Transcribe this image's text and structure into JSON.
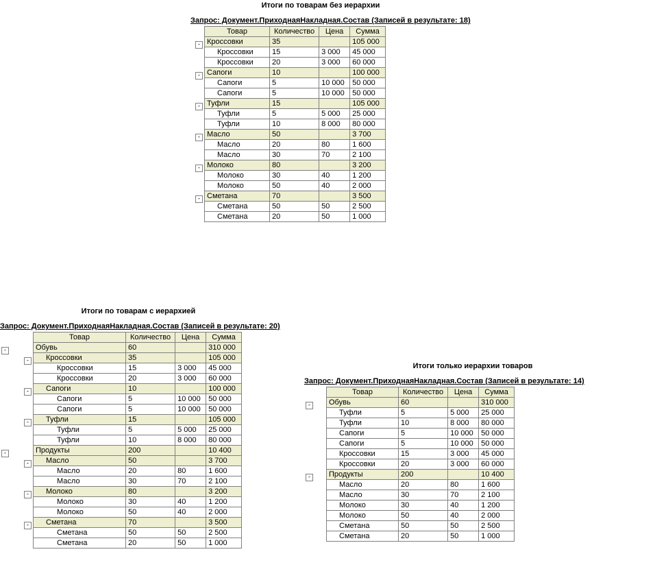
{
  "colors": {
    "group_bg": "#eeeed1",
    "detail_bg": "#ffffff",
    "border": "#808080",
    "text": "#000000"
  },
  "columns": [
    "Товар",
    "Количество",
    "Цена",
    "Сумма"
  ],
  "col_widths": {
    "tovar": 95,
    "qty": 70,
    "price": 45,
    "sum": 52
  },
  "panel1": {
    "title": "Итоги по товарам без иерархии",
    "query": "Запрос: Документ.ПриходнаяНакладная.Состав (Записей в результате: 18)",
    "tree_width": 20,
    "rows": [
      {
        "level": 0,
        "type": "group",
        "box": true,
        "cells": [
          "Кроссовки",
          "35",
          "",
          "105 000"
        ]
      },
      {
        "level": 0,
        "type": "detail",
        "cells": [
          "Кроссовки",
          "15",
          "3 000",
          "45 000"
        ],
        "ind": 1
      },
      {
        "level": 0,
        "type": "detail",
        "cells": [
          "Кроссовки",
          "20",
          "3 000",
          "60 000"
        ],
        "ind": 1
      },
      {
        "level": 0,
        "type": "group",
        "box": true,
        "cells": [
          "Сапоги",
          "10",
          "",
          "100 000"
        ]
      },
      {
        "level": 0,
        "type": "detail",
        "cells": [
          "Сапоги",
          "5",
          "10 000",
          "50 000"
        ],
        "ind": 1
      },
      {
        "level": 0,
        "type": "detail",
        "cells": [
          "Сапоги",
          "5",
          "10 000",
          "50 000"
        ],
        "ind": 1
      },
      {
        "level": 0,
        "type": "group",
        "box": true,
        "cells": [
          "Туфли",
          "15",
          "",
          "105 000"
        ]
      },
      {
        "level": 0,
        "type": "detail",
        "cells": [
          "Туфли",
          "5",
          "5 000",
          "25 000"
        ],
        "ind": 1
      },
      {
        "level": 0,
        "type": "detail",
        "cells": [
          "Туфли",
          "10",
          "8 000",
          "80 000"
        ],
        "ind": 1
      },
      {
        "level": 0,
        "type": "group",
        "box": true,
        "cells": [
          "Масло",
          "50",
          "",
          "3 700"
        ]
      },
      {
        "level": 0,
        "type": "detail",
        "cells": [
          "Масло",
          "20",
          "80",
          "1 600"
        ],
        "ind": 1
      },
      {
        "level": 0,
        "type": "detail",
        "cells": [
          "Масло",
          "30",
          "70",
          "2 100"
        ],
        "ind": 1
      },
      {
        "level": 0,
        "type": "group",
        "box": true,
        "cells": [
          "Молоко",
          "80",
          "",
          "3 200"
        ]
      },
      {
        "level": 0,
        "type": "detail",
        "cells": [
          "Молоко",
          "30",
          "40",
          "1 200"
        ],
        "ind": 1
      },
      {
        "level": 0,
        "type": "detail",
        "cells": [
          "Молоко",
          "50",
          "40",
          "2 000"
        ],
        "ind": 1
      },
      {
        "level": 0,
        "type": "group",
        "box": true,
        "cells": [
          "Сметана",
          "70",
          "",
          "3 500"
        ]
      },
      {
        "level": 0,
        "type": "detail",
        "cells": [
          "Сметана",
          "50",
          "50",
          "2 500"
        ],
        "ind": 1
      },
      {
        "level": 0,
        "type": "detail",
        "cells": [
          "Сметана",
          "20",
          "50",
          "1 000"
        ],
        "ind": 1
      }
    ]
  },
  "panel2": {
    "title": "Итоги по товарам с иерархией",
    "query": "Запрос: Документ.ПриходнаяНакладная.Состав (Записей в результате: 20)",
    "tree_width": 48,
    "col_widths": {
      "tovar": 135,
      "qty": 70,
      "price": 45,
      "sum": 52
    },
    "rows": [
      {
        "level": 0,
        "type": "group",
        "box": true,
        "cells": [
          "Обувь",
          "60",
          "",
          "310 000"
        ]
      },
      {
        "level": 1,
        "type": "group",
        "box": true,
        "cells": [
          "Кроссовки",
          "35",
          "",
          "105 000"
        ],
        "ind": 1
      },
      {
        "level": 1,
        "type": "detail",
        "cells": [
          "Кроссовки",
          "15",
          "3 000",
          "45 000"
        ],
        "ind": 2
      },
      {
        "level": 1,
        "type": "detail",
        "cells": [
          "Кроссовки",
          "20",
          "3 000",
          "60 000"
        ],
        "ind": 2
      },
      {
        "level": 1,
        "type": "group",
        "box": true,
        "cells": [
          "Сапоги",
          "10",
          "",
          "100 000"
        ],
        "ind": 1
      },
      {
        "level": 1,
        "type": "detail",
        "cells": [
          "Сапоги",
          "5",
          "10 000",
          "50 000"
        ],
        "ind": 2
      },
      {
        "level": 1,
        "type": "detail",
        "cells": [
          "Сапоги",
          "5",
          "10 000",
          "50 000"
        ],
        "ind": 2
      },
      {
        "level": 1,
        "type": "group",
        "box": true,
        "cells": [
          "Туфли",
          "15",
          "",
          "105 000"
        ],
        "ind": 1
      },
      {
        "level": 1,
        "type": "detail",
        "cells": [
          "Туфли",
          "5",
          "5 000",
          "25 000"
        ],
        "ind": 2
      },
      {
        "level": 1,
        "type": "detail",
        "cells": [
          "Туфли",
          "10",
          "8 000",
          "80 000"
        ],
        "ind": 2
      },
      {
        "level": 0,
        "type": "group",
        "box": true,
        "cells": [
          "Продукты",
          "200",
          "",
          "10 400"
        ]
      },
      {
        "level": 1,
        "type": "group",
        "box": true,
        "cells": [
          "Масло",
          "50",
          "",
          "3 700"
        ],
        "ind": 1
      },
      {
        "level": 1,
        "type": "detail",
        "cells": [
          "Масло",
          "20",
          "80",
          "1 600"
        ],
        "ind": 2
      },
      {
        "level": 1,
        "type": "detail",
        "cells": [
          "Масло",
          "30",
          "70",
          "2 100"
        ],
        "ind": 2
      },
      {
        "level": 1,
        "type": "group",
        "box": true,
        "cells": [
          "Молоко",
          "80",
          "",
          "3 200"
        ],
        "ind": 1
      },
      {
        "level": 1,
        "type": "detail",
        "cells": [
          "Молоко",
          "30",
          "40",
          "1 200"
        ],
        "ind": 2
      },
      {
        "level": 1,
        "type": "detail",
        "cells": [
          "Молоко",
          "50",
          "40",
          "2 000"
        ],
        "ind": 2
      },
      {
        "level": 1,
        "type": "group",
        "box": true,
        "cells": [
          "Сметана",
          "70",
          "",
          "3 500"
        ],
        "ind": 1
      },
      {
        "level": 1,
        "type": "detail",
        "cells": [
          "Сметана",
          "50",
          "50",
          "2 500"
        ],
        "ind": 2
      },
      {
        "level": 1,
        "type": "detail",
        "cells": [
          "Сметана",
          "20",
          "50",
          "1 000"
        ],
        "ind": 2
      }
    ]
  },
  "panel3": {
    "title": "Итоги только иерархии товаров",
    "query": "Запрос: Документ.ПриходнаяНакладная.Состав (Записей в результате: 14)",
    "tree_width": 32,
    "col_widths": {
      "tovar": 105,
      "qty": 70,
      "price": 45,
      "sum": 52
    },
    "rows": [
      {
        "level": 0,
        "type": "group",
        "box": true,
        "cells": [
          "Обувь",
          "60",
          "",
          "310 000"
        ]
      },
      {
        "level": 0,
        "type": "detail",
        "cells": [
          "Туфли",
          "5",
          "5 000",
          "25 000"
        ],
        "ind": 1
      },
      {
        "level": 0,
        "type": "detail",
        "cells": [
          "Туфли",
          "10",
          "8 000",
          "80 000"
        ],
        "ind": 1
      },
      {
        "level": 0,
        "type": "detail",
        "cells": [
          "Сапоги",
          "5",
          "10 000",
          "50 000"
        ],
        "ind": 1
      },
      {
        "level": 0,
        "type": "detail",
        "cells": [
          "Сапоги",
          "5",
          "10 000",
          "50 000"
        ],
        "ind": 1
      },
      {
        "level": 0,
        "type": "detail",
        "cells": [
          "Кроссовки",
          "15",
          "3 000",
          "45 000"
        ],
        "ind": 1
      },
      {
        "level": 0,
        "type": "detail",
        "cells": [
          "Кроссовки",
          "20",
          "3 000",
          "60 000"
        ],
        "ind": 1
      },
      {
        "level": 0,
        "type": "group",
        "box": true,
        "cells": [
          "Продукты",
          "200",
          "",
          "10 400"
        ]
      },
      {
        "level": 0,
        "type": "detail",
        "cells": [
          "Масло",
          "20",
          "80",
          "1 600"
        ],
        "ind": 1
      },
      {
        "level": 0,
        "type": "detail",
        "cells": [
          "Масло",
          "30",
          "70",
          "2 100"
        ],
        "ind": 1
      },
      {
        "level": 0,
        "type": "detail",
        "cells": [
          "Молоко",
          "30",
          "40",
          "1 200"
        ],
        "ind": 1
      },
      {
        "level": 0,
        "type": "detail",
        "cells": [
          "Молоко",
          "50",
          "40",
          "2 000"
        ],
        "ind": 1
      },
      {
        "level": 0,
        "type": "detail",
        "cells": [
          "Сметана",
          "50",
          "50",
          "2 500"
        ],
        "ind": 1
      },
      {
        "level": 0,
        "type": "detail",
        "cells": [
          "Сметана",
          "20",
          "50",
          "1 000"
        ],
        "ind": 1
      }
    ]
  }
}
